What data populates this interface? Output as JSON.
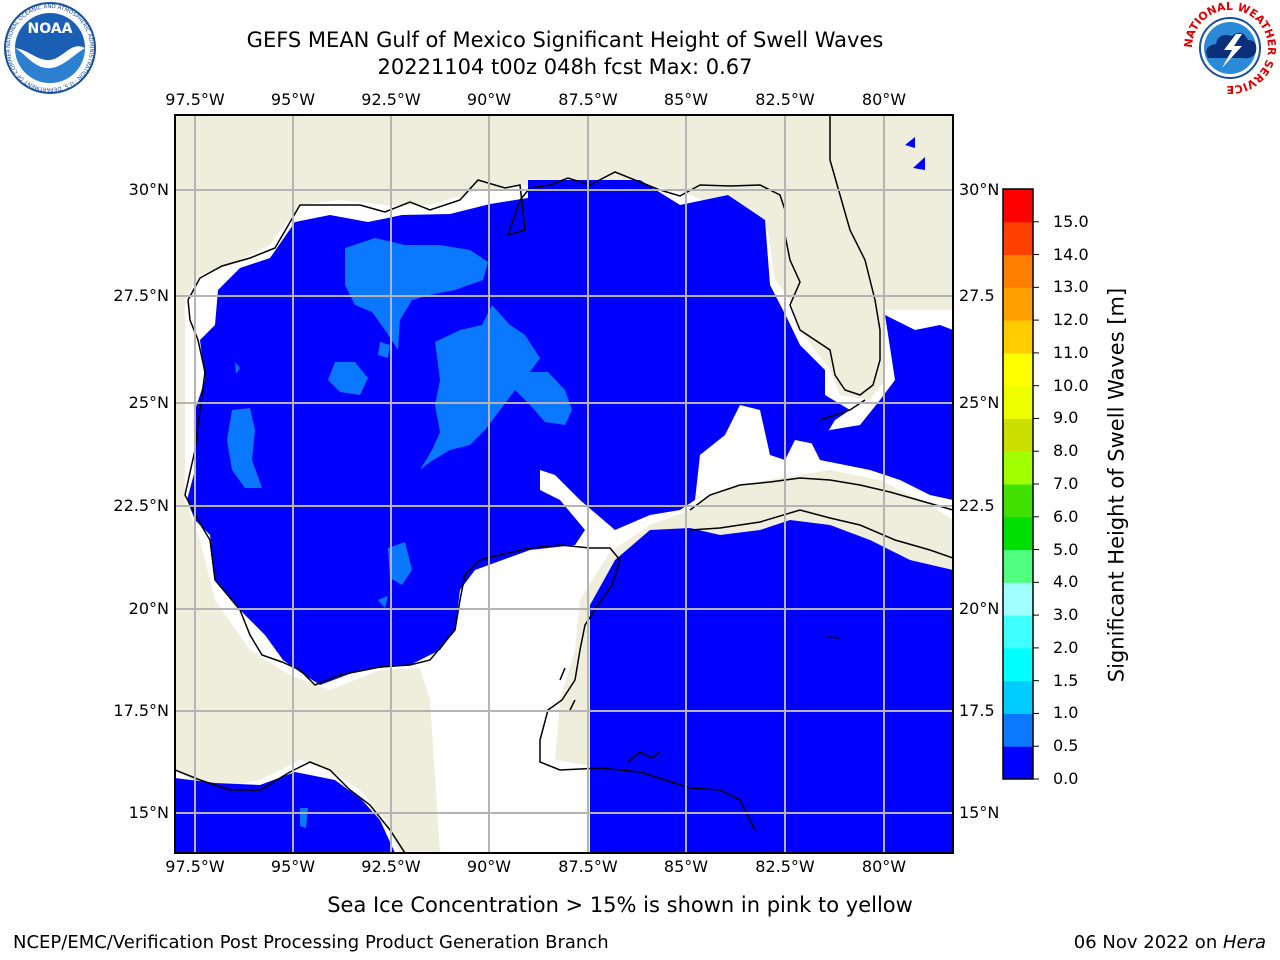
{
  "header": {
    "title_line1": "GEFS MEAN Gulf of Mexico Significant Height of Swell Waves",
    "title_line2": "20221104 t00z 048h fcst   Max: 0.67"
  },
  "logos": {
    "noaa_text": "NOAA",
    "noaa_ring_text": "NATIONAL OCEANIC AND ATMOSPHERIC ADMINISTRATION · U.S. DEPARTMENT OF COMMERCE",
    "nws_ring_text": "NATIONAL WEATHER SERVICE"
  },
  "map": {
    "lon_labels": [
      "97.5°W",
      "95°W",
      "92.5°W",
      "90°W",
      "87.5°W",
      "85°W",
      "82.5°W",
      "80°W"
    ],
    "lat_labels": [
      "30°N",
      "27.5°N",
      "25°N",
      "22.5°N",
      "20°N",
      "17.5°N",
      "15°N"
    ],
    "lat_labels_right": [
      "30°N",
      "27.5",
      "25°N",
      "22.5",
      "20°N",
      "17.5",
      "15°N"
    ],
    "colors": {
      "land": "#efeddc",
      "ocean": "#0000ff",
      "swell_05": "#0a78ff",
      "grid": "#b4b4b4"
    }
  },
  "colorbar": {
    "label": "Significant Height of Swell Waves [m]",
    "tick_labels": [
      "0.0",
      "0.5",
      "1.0",
      "1.5",
      "2.0",
      "3.0",
      "4.0",
      "5.0",
      "6.0",
      "7.0",
      "8.0",
      "9.0",
      "10.0",
      "11.0",
      "12.0",
      "13.0",
      "14.0",
      "15.0"
    ],
    "colors": [
      "#0000ff",
      "#0a78ff",
      "#00ccff",
      "#00ffff",
      "#40ffff",
      "#a0ffff",
      "#50ff80",
      "#00e000",
      "#40e000",
      "#a0ff00",
      "#cce000",
      "#eeff00",
      "#ffff00",
      "#ffcc00",
      "#ffa000",
      "#ff8000",
      "#ff4000",
      "#ff0000"
    ]
  },
  "note": "Sea Ice Concentration > 15% is shown in pink to yellow",
  "footer": {
    "left": "NCEP/EMC/Verification Post Processing Product Generation Branch",
    "date": "06 Nov 2022 on ",
    "machine": "Hera"
  }
}
